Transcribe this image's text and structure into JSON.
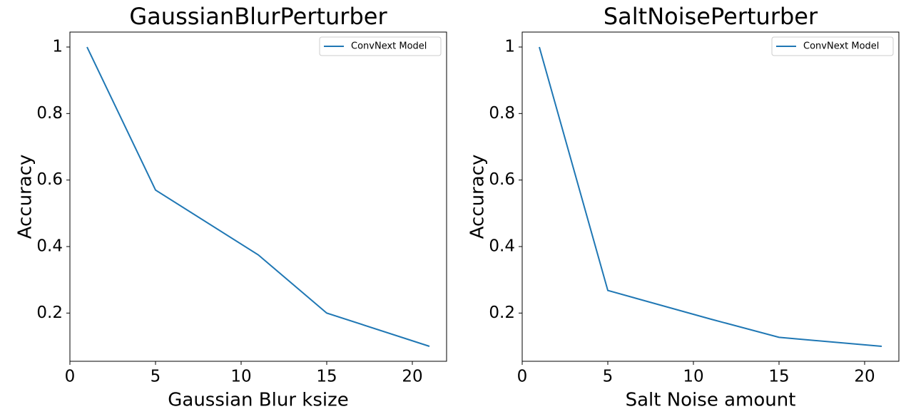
{
  "chart_data": [
    {
      "type": "line",
      "title": "GaussianBlurPerturber",
      "x_label": "Gaussian Blur ksize",
      "y_label": "Accuracy",
      "x": [
        1,
        5,
        11,
        15,
        21
      ],
      "series": [
        {
          "name": "ConvNext Model",
          "color": "#1f77b4",
          "values": [
            1.0,
            0.57,
            0.375,
            0.2,
            0.1
          ]
        }
      ],
      "xlim": [
        0,
        22
      ],
      "xticks": [
        0,
        5,
        10,
        15,
        20
      ],
      "ylim": [
        0.055,
        1.045
      ],
      "yticks": [
        0.2,
        0.4,
        0.6,
        0.8,
        1.0
      ],
      "legend": "upper right"
    },
    {
      "type": "line",
      "title": "SaltNoisePerturber",
      "x_label": "Salt Noise amount",
      "y_label": "Accuracy",
      "x": [
        1,
        5,
        11,
        15,
        21
      ],
      "series": [
        {
          "name": "ConvNext Model",
          "color": "#1f77b4",
          "values": [
            1.0,
            0.268,
            0.182,
            0.127,
            0.1
          ]
        }
      ],
      "xlim": [
        0,
        22
      ],
      "xticks": [
        0,
        5,
        10,
        15,
        20
      ],
      "ylim": [
        0.055,
        1.045
      ],
      "yticks": [
        0.2,
        0.4,
        0.6,
        0.8,
        1.0
      ],
      "legend": "upper right"
    }
  ]
}
